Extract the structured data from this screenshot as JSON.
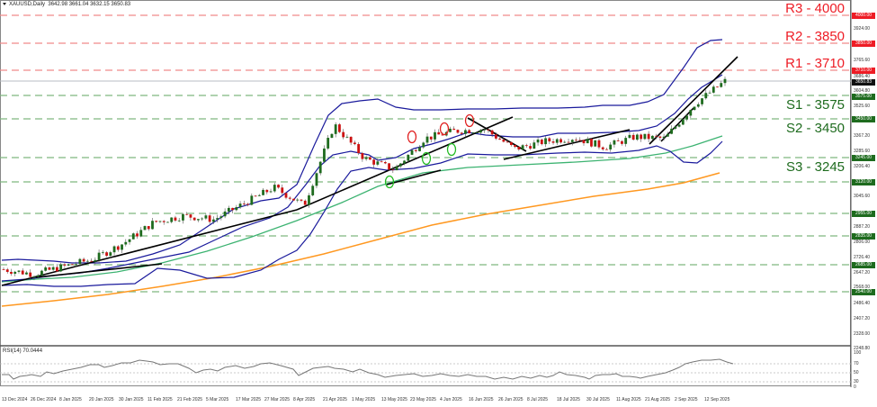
{
  "header": {
    "symbol": "XAUUSD,Daily",
    "ohlc": "3642.98 3661.04 3632.15 3650.83"
  },
  "rsi_header": "RSI(14) 70.0444",
  "levels": {
    "r3": {
      "label": "R3 - 4000",
      "value": 4000
    },
    "r2": {
      "label": "R2 - 3850",
      "value": 3850
    },
    "r1": {
      "label": "R1 - 3710",
      "value": 3710
    },
    "s1": {
      "label": "S1 - 3575",
      "value": 3575
    },
    "s2": {
      "label": "S2 - 3450",
      "value": 3450
    },
    "s3": {
      "label": "S3 - 3245",
      "value": 3245
    }
  },
  "price_axis": {
    "ticks": [
      "3924.00",
      "3765.60",
      "3686.40",
      "3604.80",
      "3525.60",
      "3367.20",
      "3285.60",
      "3206.40",
      "3045.60",
      "2887.20",
      "2806.00",
      "2726.40",
      "2647.20",
      "2568.00",
      "2486.40",
      "2407.20",
      "2328.00",
      "2248.80"
    ],
    "boxes": {
      "r3": "4000.00",
      "r2": "3850.00",
      "r1": "3710.00",
      "current": "3650.83",
      "s1": "3575.00",
      "s2": "3450.00",
      "s3": "3245.00",
      "l3120": "3120.00",
      "l2955": "2955.00",
      "l2835": "2835.00",
      "l2685": "2685.00",
      "l2540": "2540.00"
    }
  },
  "rsi_axis": [
    "100",
    "70",
    "50",
    "30",
    "0"
  ],
  "date_axis": [
    "13 Dec 2024",
    "26 Dec 2024",
    "8 Jan 2025",
    "20 Jan 2025",
    "30 Jan 2025",
    "11 Feb 2025",
    "21 Feb 2025",
    "5 Mar 2025",
    "17 Mar 2025",
    "27 Mar 2025",
    "8 Apr 2025",
    "21 Apr 2025",
    "1 May 2025",
    "13 May 2025",
    "23 May 2025",
    "4 Jun 2025",
    "16 Jun 2025",
    "26 Jun 2025",
    "8 Jul 2025",
    "18 Jul 2025",
    "30 Jul 2025",
    "11 Aug 2025",
    "21 Aug 2025",
    "2 Sep 2025",
    "12 Sep 2025"
  ],
  "colors": {
    "resistance": "#ee1c25",
    "support": "#1e6b1e",
    "bull_candle": "#1e6b1e",
    "bear_candle": "#cc1111",
    "bollinger": "#1a1a9c",
    "ma_green": "#3cb371",
    "ma_orange": "#ff9820",
    "trendline": "#000000",
    "current_price_box": "#111111"
  },
  "chart_data": {
    "type": "candlestick",
    "title": "XAUUSD,Daily",
    "instrument": "XAUUSD",
    "timeframe": "Daily",
    "last_ohlc": {
      "open": 3642.98,
      "high": 3661.04,
      "low": 3632.15,
      "close": 3650.83
    },
    "ylim": [
      2248.8,
      4000
    ],
    "x_ticks": [
      "13 Dec 2024",
      "26 Dec 2024",
      "8 Jan 2025",
      "20 Jan 2025",
      "30 Jan 2025",
      "11 Feb 2025",
      "21 Feb 2025",
      "5 Mar 2025",
      "17 Mar 2025",
      "27 Mar 2025",
      "8 Apr 2025",
      "21 Apr 2025",
      "1 May 2025",
      "13 May 2025",
      "23 May 2025",
      "4 Jun 2025",
      "16 Jun 2025",
      "26 Jun 2025",
      "8 Jul 2025",
      "18 Jul 2025",
      "30 Jul 2025",
      "11 Aug 2025",
      "21 Aug 2025",
      "2 Sep 2025",
      "12 Sep 2025"
    ],
    "approx_close_series": {
      "dates": [
        "13 Dec 2024",
        "26 Dec 2024",
        "8 Jan 2025",
        "20 Jan 2025",
        "30 Jan 2025",
        "11 Feb 2025",
        "21 Feb 2025",
        "5 Mar 2025",
        "17 Mar 2025",
        "27 Mar 2025",
        "8 Apr 2025",
        "21 Apr 2025",
        "1 May 2025",
        "13 May 2025",
        "23 May 2025",
        "4 Jun 2025",
        "16 Jun 2025",
        "26 Jun 2025",
        "8 Jul 2025",
        "18 Jul 2025",
        "30 Jul 2025",
        "11 Aug 2025",
        "21 Aug 2025",
        "2 Sep 2025",
        "12 Sep 2025"
      ],
      "values": [
        2650,
        2625,
        2665,
        2705,
        2790,
        2900,
        2935,
        2915,
        3000,
        3085,
        2990,
        3420,
        3240,
        3180,
        3345,
        3385,
        3395,
        3290,
        3330,
        3350,
        3300,
        3355,
        3345,
        3530,
        3650
      ]
    },
    "horizontal_levels": [
      {
        "name": "R3",
        "value": 4000,
        "color": "red"
      },
      {
        "name": "R2",
        "value": 3850,
        "color": "red"
      },
      {
        "name": "R1",
        "value": 3710,
        "color": "red"
      },
      {
        "name": "S1",
        "value": 3575,
        "color": "green"
      },
      {
        "name": "S2",
        "value": 3450,
        "color": "green"
      },
      {
        "name": "S3",
        "value": 3245,
        "color": "green"
      },
      {
        "name": "",
        "value": 3120,
        "color": "green"
      },
      {
        "name": "",
        "value": 2955,
        "color": "green"
      },
      {
        "name": "",
        "value": 2835,
        "color": "green"
      },
      {
        "name": "",
        "value": 2685,
        "color": "green"
      },
      {
        "name": "",
        "value": 2540,
        "color": "green"
      }
    ],
    "indicators": [
      {
        "name": "Bollinger Bands",
        "color": "navy"
      },
      {
        "name": "Moving Average (green, ~100)",
        "color": "green"
      },
      {
        "name": "Moving Average (orange, ~200)",
        "color": "orange"
      },
      {
        "name": "RSI(14)",
        "last": 70.0444,
        "levels": [
          70,
          50,
          30
        ],
        "ylim": [
          0,
          100
        ]
      }
    ],
    "annotations": [
      "red circles at swing highs (May–Jun 2025)",
      "green circles at swing lows (May–Jun 2025)",
      "black trendlines (uptrend support lines)"
    ]
  }
}
